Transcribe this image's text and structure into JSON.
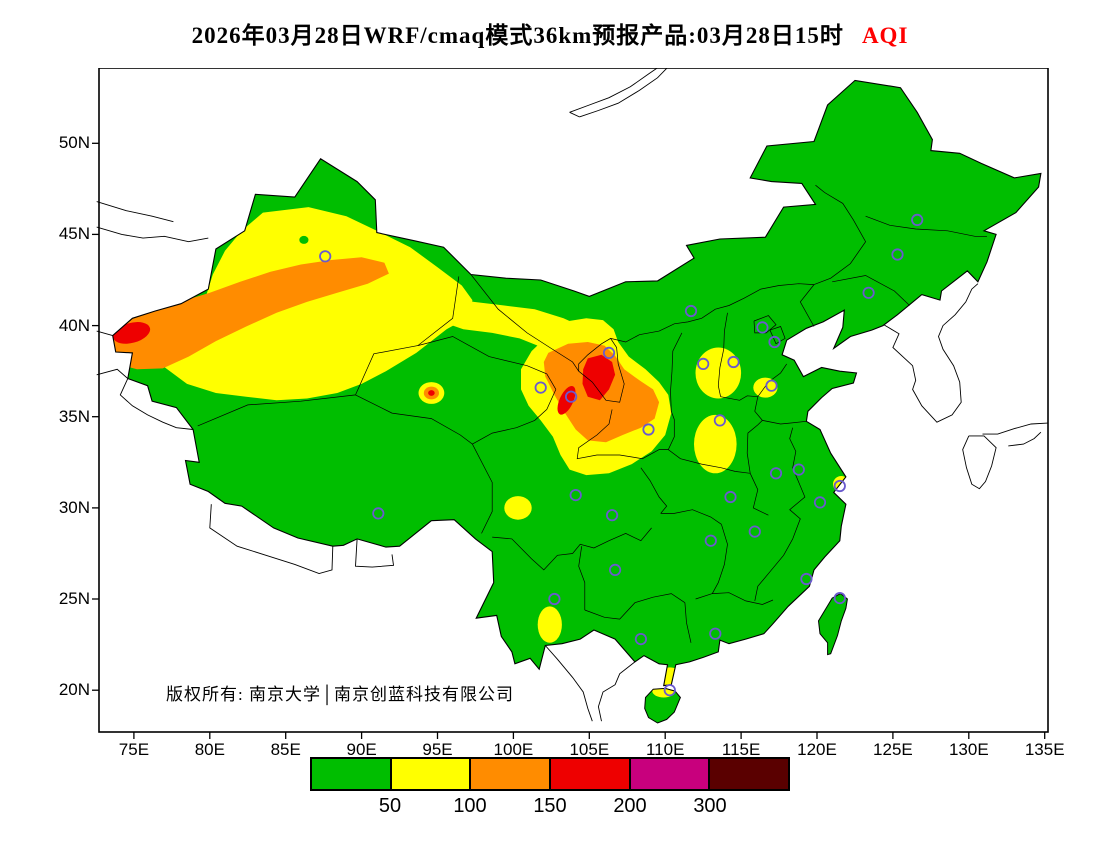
{
  "title": {
    "text": "2026年03月28日WRF/cmaq模式36km预报产品:03月28日15时",
    "aqi": "AQI",
    "aqi_color": "#FF0000"
  },
  "map": {
    "copyright": "版权所有: 南京大学│南京创蓝科技有限公司",
    "marker_color": "#6A5ACD",
    "cities": [
      [
        87.6,
        43.8
      ],
      [
        91.1,
        29.7
      ],
      [
        101.8,
        36.6
      ],
      [
        103.8,
        36.1
      ],
      [
        106.3,
        38.5
      ],
      [
        111.7,
        40.8
      ],
      [
        108.9,
        34.3
      ],
      [
        112.5,
        37.9
      ],
      [
        114.5,
        38.0
      ],
      [
        116.4,
        39.9
      ],
      [
        117.2,
        39.1
      ],
      [
        117.0,
        36.7
      ],
      [
        113.6,
        34.8
      ],
      [
        123.4,
        41.8
      ],
      [
        125.3,
        43.9
      ],
      [
        126.6,
        45.8
      ],
      [
        117.3,
        31.9
      ],
      [
        118.8,
        32.1
      ],
      [
        121.5,
        31.2
      ],
      [
        120.2,
        30.3
      ],
      [
        114.3,
        30.6
      ],
      [
        113.0,
        28.2
      ],
      [
        115.9,
        28.7
      ],
      [
        119.3,
        26.1
      ],
      [
        121.5,
        25.05
      ],
      [
        113.3,
        23.1
      ],
      [
        108.4,
        22.8
      ],
      [
        110.3,
        20.0
      ],
      [
        106.7,
        26.6
      ],
      [
        104.1,
        30.7
      ],
      [
        106.5,
        29.6
      ],
      [
        102.7,
        25.0
      ]
    ]
  },
  "axes": {
    "x_labels": [
      "75E",
      "80E",
      "85E",
      "90E",
      "95E",
      "100E",
      "105E",
      "110E",
      "115E",
      "120E",
      "125E",
      "130E",
      "135E"
    ],
    "x_values": [
      75,
      80,
      85,
      90,
      95,
      100,
      105,
      110,
      115,
      120,
      125,
      130,
      135
    ],
    "y_labels": [
      "50N",
      "45N",
      "40N",
      "35N",
      "30N",
      "25N",
      "20N"
    ],
    "y_values": [
      50,
      45,
      40,
      35,
      30,
      25,
      20
    ]
  },
  "legend": {
    "labels": [
      "50",
      "100",
      "150",
      "200",
      "300"
    ],
    "colors": [
      "#00BE00",
      "#FFFF00",
      "#FF8C00",
      "#EE0000",
      "#C8007D",
      "#5A0000"
    ]
  }
}
